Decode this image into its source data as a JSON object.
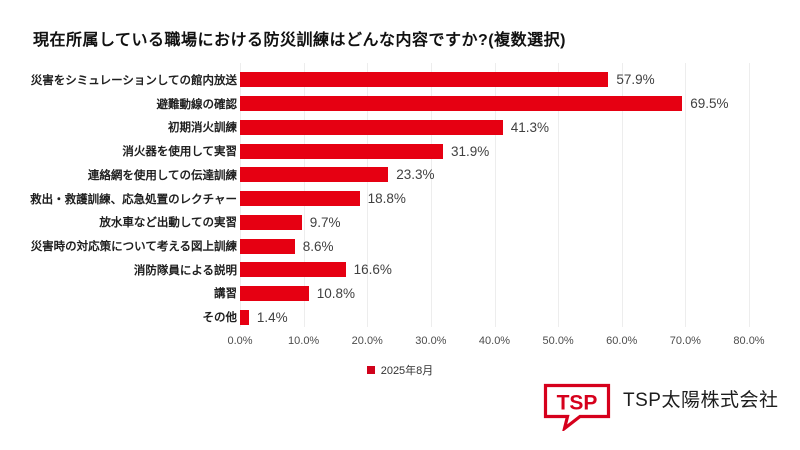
{
  "title": "現在所属している職場における防災訓練はどんな内容ですか?(複数選択)",
  "chart_data": {
    "type": "bar",
    "orientation": "horizontal",
    "title": "現在所属している職場における防災訓練はどんな内容ですか?(複数選択)",
    "categories": [
      "災害をシミュレーションしての館内放送",
      "避難動線の確認",
      "初期消火訓練",
      "消火器を使用して実習",
      "連絡網を使用しての伝達訓練",
      "救出・救護訓練、応急処置のレクチャー",
      "放水車など出動しての実習",
      "災害時の対応策について考える図上訓練",
      "消防隊員による説明",
      "講習",
      "その他"
    ],
    "values": [
      57.9,
      69.5,
      41.3,
      31.9,
      23.3,
      18.8,
      9.7,
      8.6,
      16.6,
      10.8,
      1.4
    ],
    "value_labels": [
      "57.9%",
      "69.5%",
      "41.3%",
      "31.9%",
      "23.3%",
      "18.8%",
      "9.7%",
      "8.6%",
      "16.6%",
      "10.8%",
      "1.4%"
    ],
    "series_name": "2025年8月",
    "xlim": [
      0,
      80
    ],
    "x_tick_labels": [
      "0.0%",
      "10.0%",
      "20.0%",
      "30.0%",
      "40.0%",
      "50.0%",
      "60.0%",
      "70.0%",
      "80.0%"
    ],
    "grid": "vertical-light",
    "legend_position": "bottom-center",
    "bar_color": "#e60012"
  },
  "legend": {
    "label": "2025年8月",
    "marker_color": "#d0021b"
  },
  "footer": {
    "logo_text": "TSP",
    "logo_color": "#d6001c",
    "company_name": "TSP太陽株式会社"
  }
}
